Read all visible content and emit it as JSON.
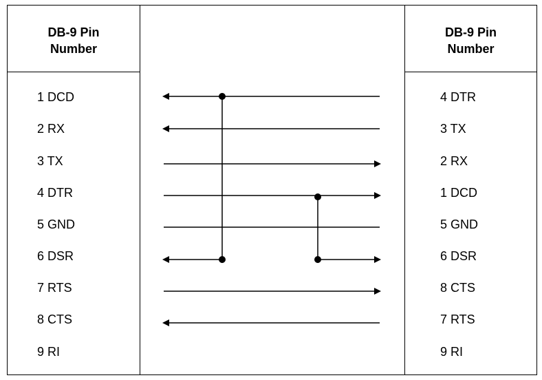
{
  "left_header": {
    "line1": "DB-9 Pin",
    "line2": "Number"
  },
  "right_header": {
    "line1": "DB-9 Pin",
    "line2": "Number"
  },
  "left_pins": [
    "1 DCD",
    "2 RX",
    "3 TX",
    "4 DTR",
    "5 GND",
    "6 DSR",
    "7 RTS",
    "8 CTS",
    "9 RI"
  ],
  "right_pins": [
    "4 DTR",
    "3 TX",
    "2 RX",
    "1 DCD",
    "5 GND",
    "6 DSR",
    "8 CTS",
    "7 RTS",
    "9 RI"
  ]
}
